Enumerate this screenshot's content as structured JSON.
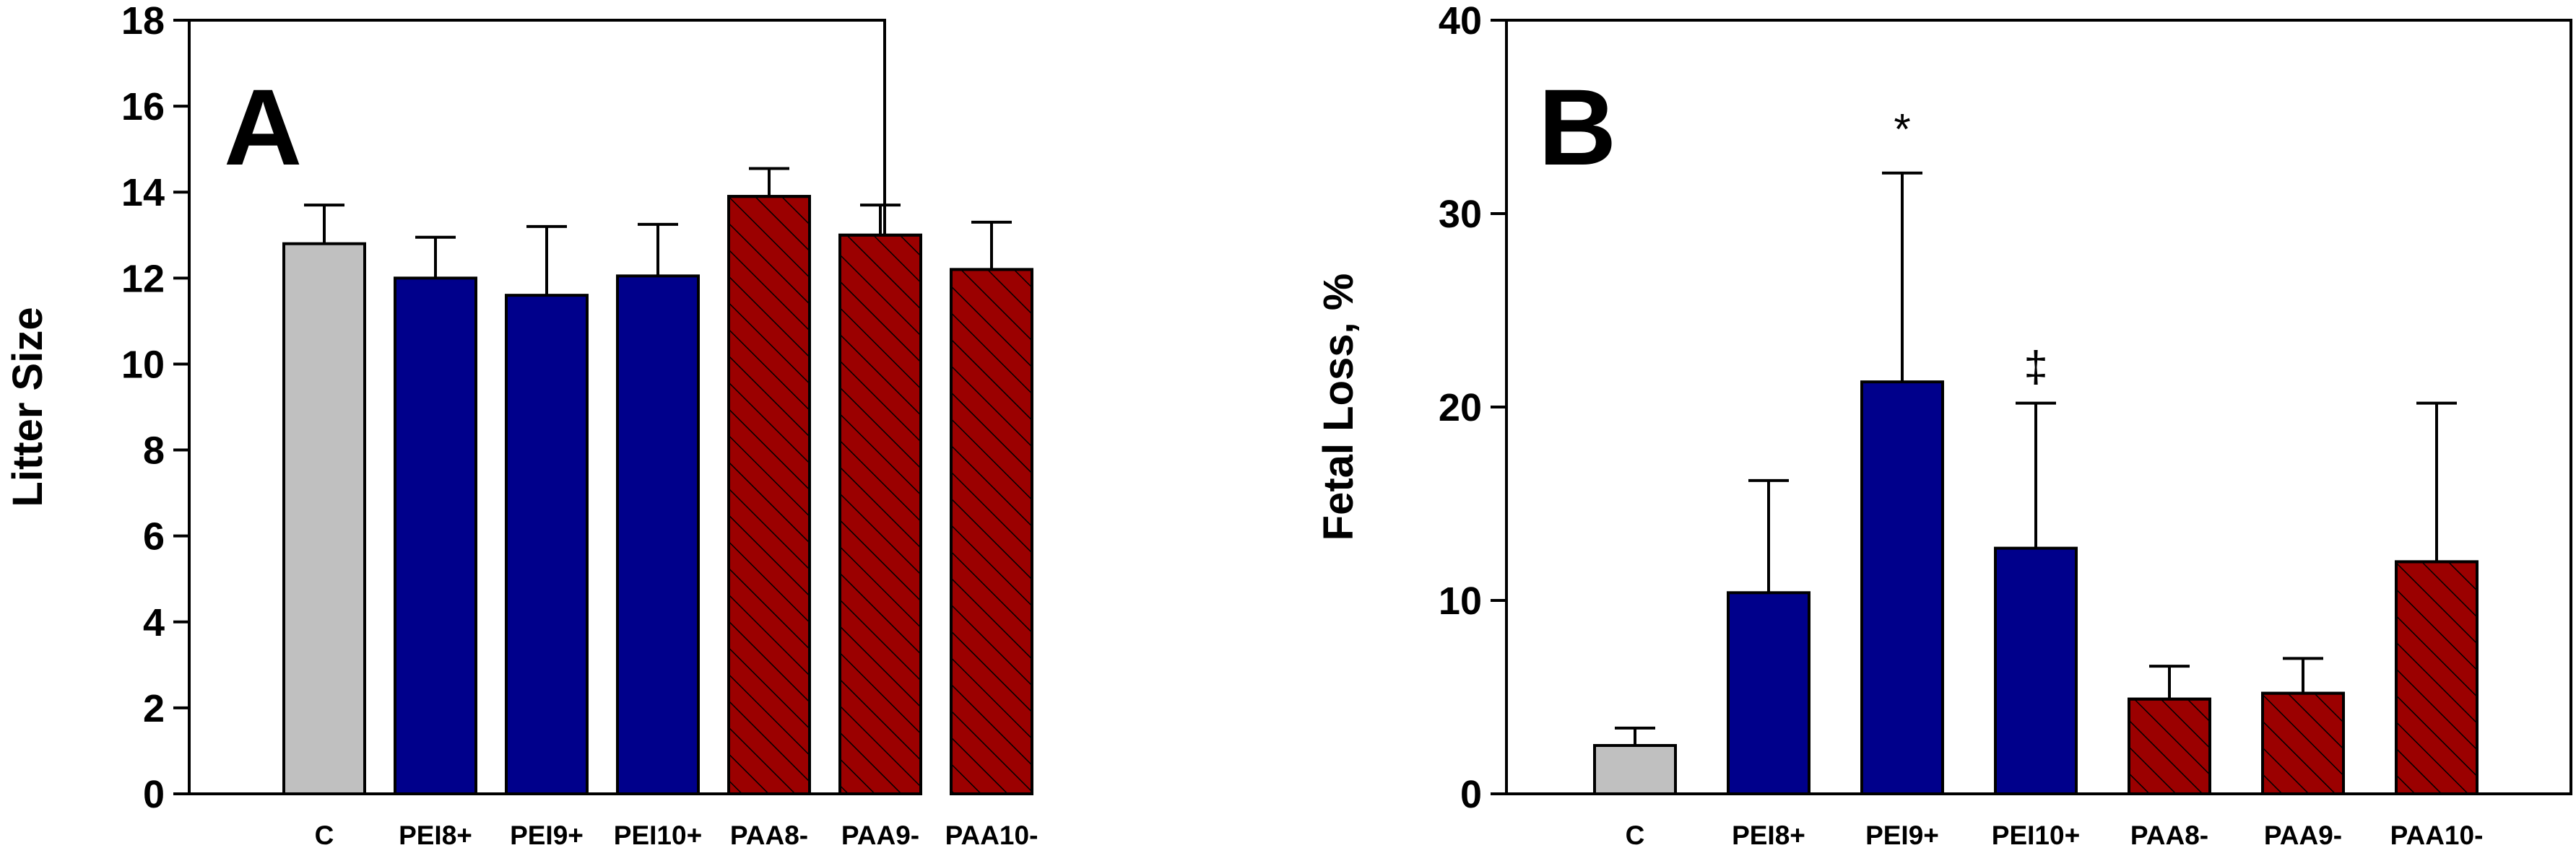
{
  "colors": {
    "control": "#c0c0c0",
    "pei": "#00008b",
    "paa": "#9b0000",
    "hatch": "#000000",
    "axis": "#000000"
  },
  "chart_data": [
    {
      "type": "bar",
      "panel_label": "A",
      "title": "",
      "xlabel": "",
      "ylabel": "Litter Size",
      "ylim": [
        0,
        18
      ],
      "yticks": [
        0,
        2,
        4,
        6,
        8,
        10,
        12,
        14,
        16,
        18
      ],
      "grid": false,
      "categories": [
        "C",
        "PEI8+",
        "PEI9+",
        "PEI10+",
        "PAA8-",
        "PAA9-",
        "PAA10-"
      ],
      "values": [
        12.8,
        12.0,
        11.6,
        12.05,
        13.9,
        13.0,
        12.2
      ],
      "errors": [
        0.9,
        0.95,
        1.6,
        1.2,
        0.65,
        0.7,
        1.1
      ],
      "groups": [
        "control",
        "pei",
        "pei",
        "pei",
        "paa",
        "paa",
        "paa"
      ],
      "annotations": []
    },
    {
      "type": "bar",
      "panel_label": "B",
      "title": "",
      "xlabel": "",
      "ylabel": "Fetal Loss, %",
      "ylim": [
        0,
        40
      ],
      "yticks": [
        0,
        10,
        20,
        30,
        40
      ],
      "grid": false,
      "categories": [
        "C",
        "PEI8+",
        "PEI9+",
        "PEI10+",
        "PAA8-",
        "PAA9-",
        "PAA10-"
      ],
      "values": [
        2.5,
        10.4,
        21.3,
        12.7,
        4.9,
        5.2,
        12.0
      ],
      "errors": [
        0.9,
        5.8,
        10.8,
        7.5,
        1.7,
        1.8,
        8.2
      ],
      "groups": [
        "control",
        "pei",
        "pei",
        "pei",
        "paa",
        "paa",
        "paa"
      ],
      "annotations": [
        {
          "category_index": 2,
          "text": "*"
        },
        {
          "category_index": 3,
          "text": "‡"
        }
      ]
    }
  ]
}
